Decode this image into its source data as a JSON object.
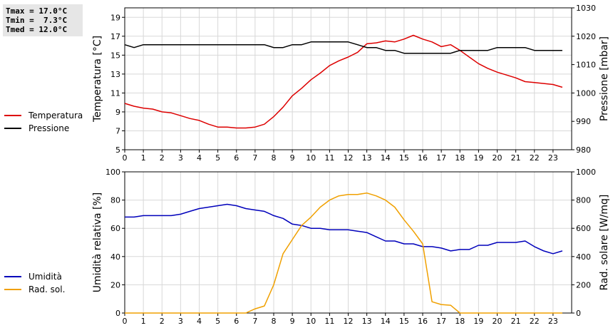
{
  "stats": {
    "tmax": "Tmax = 17.0°C",
    "tmin": "Tmin =  7.3°C",
    "tmed": "Tmed = 12.0°C"
  },
  "colors": {
    "temperature": "#dd0000",
    "pressure": "#000000",
    "humidity": "#0000bb",
    "radiation": "#f0a000",
    "grid": "#d8d8d8"
  },
  "chart_data": [
    {
      "type": "line",
      "title": "",
      "xlabel": "",
      "ylabel": "Temperatura [°C]",
      "ylabel_right": "Pressione [mbar]",
      "xlim": [
        0,
        24
      ],
      "xticks": [
        0,
        1,
        2,
        3,
        4,
        5,
        6,
        7,
        8,
        9,
        10,
        11,
        12,
        13,
        14,
        15,
        16,
        17,
        18,
        19,
        20,
        21,
        22,
        23
      ],
      "ylim": [
        5,
        20
      ],
      "yticks": [
        5,
        7,
        9,
        11,
        13,
        15,
        17,
        19
      ],
      "ylim_right": [
        980,
        1030
      ],
      "yticks_right": [
        980,
        990,
        1000,
        1010,
        1020,
        1030
      ],
      "grid": true,
      "legend_position": "left",
      "series": [
        {
          "name": "Temperatura",
          "axis": "left",
          "color": "#dd0000",
          "x": [
            0,
            0.5,
            1,
            1.5,
            2,
            2.5,
            3,
            3.5,
            4,
            4.5,
            5,
            5.5,
            6,
            6.5,
            7,
            7.5,
            8,
            8.5,
            9,
            9.5,
            10,
            10.5,
            11,
            11.5,
            12,
            12.5,
            13,
            13.5,
            14,
            14.5,
            15,
            15.5,
            16,
            16.5,
            17,
            17.5,
            18,
            18.5,
            19,
            19.5,
            20,
            20.5,
            21,
            21.5,
            22,
            22.5,
            23,
            23.5
          ],
          "values": [
            9.9,
            9.6,
            9.4,
            9.3,
            9.0,
            8.9,
            8.6,
            8.3,
            8.1,
            7.7,
            7.4,
            7.4,
            7.3,
            7.3,
            7.4,
            7.7,
            8.5,
            9.5,
            10.7,
            11.5,
            12.4,
            13.1,
            13.9,
            14.4,
            14.8,
            15.3,
            16.2,
            16.3,
            16.5,
            16.4,
            16.7,
            17.1,
            16.7,
            16.4,
            15.9,
            16.1,
            15.5,
            14.8,
            14.1,
            13.6,
            13.2,
            12.9,
            12.6,
            12.2,
            12.1,
            12.0,
            11.9,
            11.6
          ]
        },
        {
          "name": "Pressione",
          "axis": "right",
          "color": "#000000",
          "x": [
            0,
            0.5,
            1,
            1.5,
            2,
            2.5,
            3,
            3.5,
            4,
            4.5,
            5,
            5.5,
            6,
            6.5,
            7,
            7.5,
            8,
            8.5,
            9,
            9.5,
            10,
            10.5,
            11,
            11.5,
            12,
            12.5,
            13,
            13.5,
            14,
            14.5,
            15,
            15.5,
            16,
            16.5,
            17,
            17.5,
            18,
            18.5,
            19,
            19.5,
            20,
            20.5,
            21,
            21.5,
            22,
            22.5,
            23,
            23.5
          ],
          "values": [
            1017,
            1016,
            1017,
            1017,
            1017,
            1017,
            1017,
            1017,
            1017,
            1017,
            1017,
            1017,
            1017,
            1017,
            1017,
            1017,
            1016,
            1016,
            1017,
            1017,
            1018,
            1018,
            1018,
            1018,
            1018,
            1017,
            1016,
            1016,
            1015,
            1015,
            1014,
            1014,
            1014,
            1014,
            1014,
            1014,
            1015,
            1015,
            1015,
            1015,
            1016,
            1016,
            1016,
            1016,
            1015,
            1015,
            1015,
            1015
          ]
        }
      ]
    },
    {
      "type": "line",
      "title": "",
      "xlabel": "",
      "ylabel": "Umidità relativa [%]",
      "ylabel_right": "Rad. solare [W/mq]",
      "xlim": [
        0,
        24
      ],
      "xticks": [
        0,
        1,
        2,
        3,
        4,
        5,
        6,
        7,
        8,
        9,
        10,
        11,
        12,
        13,
        14,
        15,
        16,
        17,
        18,
        19,
        20,
        21,
        22,
        23
      ],
      "ylim": [
        0,
        100
      ],
      "yticks": [
        0,
        20,
        40,
        60,
        80,
        100
      ],
      "ylim_right": [
        0,
        1000
      ],
      "yticks_right": [
        0,
        200,
        400,
        600,
        800,
        1000
      ],
      "grid": true,
      "legend_position": "left",
      "series": [
        {
          "name": "Umidità",
          "axis": "left",
          "color": "#0000bb",
          "x": [
            0,
            0.5,
            1,
            1.5,
            2,
            2.5,
            3,
            3.5,
            4,
            4.5,
            5,
            5.5,
            6,
            6.5,
            7,
            7.5,
            8,
            8.5,
            9,
            9.5,
            10,
            10.5,
            11,
            11.5,
            12,
            12.5,
            13,
            13.5,
            14,
            14.5,
            15,
            15.5,
            16,
            16.5,
            17,
            17.5,
            18,
            18.5,
            19,
            19.5,
            20,
            20.5,
            21,
            21.5,
            22,
            22.5,
            23,
            23.5
          ],
          "values": [
            68,
            68,
            69,
            69,
            69,
            69,
            70,
            72,
            74,
            75,
            76,
            77,
            76,
            74,
            73,
            72,
            69,
            67,
            63,
            62,
            60,
            60,
            59,
            59,
            59,
            58,
            57,
            54,
            51,
            51,
            49,
            49,
            47,
            47,
            46,
            44,
            45,
            45,
            48,
            48,
            50,
            50,
            50,
            51,
            47,
            44,
            42,
            44
          ]
        },
        {
          "name": "Rad. sol.",
          "axis": "right",
          "color": "#f0a000",
          "x": [
            0,
            0.5,
            1,
            1.5,
            2,
            2.5,
            3,
            3.5,
            4,
            4.5,
            5,
            5.5,
            6,
            6.5,
            7,
            7.5,
            8,
            8.5,
            9,
            9.5,
            10,
            10.5,
            11,
            11.5,
            12,
            12.5,
            13,
            13.5,
            14,
            14.5,
            15,
            15.5,
            16,
            16.5,
            17,
            17.5,
            18,
            18.5,
            19,
            19.5,
            20,
            20.5,
            21,
            21.5,
            22,
            22.5,
            23,
            23.5
          ],
          "values": [
            0,
            0,
            0,
            0,
            0,
            0,
            0,
            0,
            0,
            0,
            0,
            0,
            0,
            0,
            30,
            50,
            200,
            420,
            520,
            620,
            680,
            750,
            800,
            830,
            840,
            840,
            850,
            830,
            800,
            750,
            660,
            580,
            490,
            80,
            60,
            55,
            0,
            0,
            0,
            0,
            0,
            0,
            0,
            0,
            0,
            0,
            0,
            0
          ]
        }
      ]
    }
  ]
}
